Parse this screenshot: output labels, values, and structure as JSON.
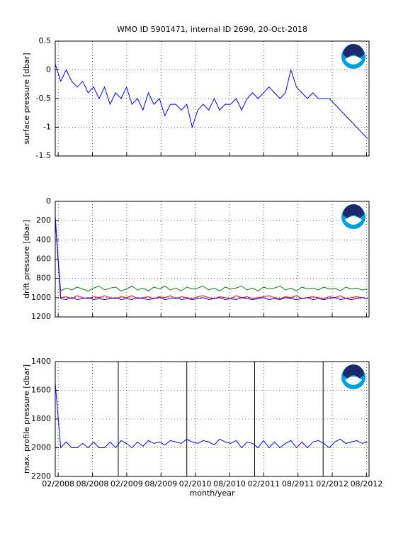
{
  "chart_data": [
    {
      "type": "line",
      "title": "WMO ID 5901471, internal ID 2690, 20-Oct-2018",
      "ylabel": "surface pressure [dbar]",
      "x": [
        2008.04,
        2008.12,
        2008.2,
        2008.28,
        2008.36,
        2008.44,
        2008.52,
        2008.6,
        2008.68,
        2008.76,
        2008.84,
        2008.92,
        2009.0,
        2009.08,
        2009.16,
        2009.24,
        2009.32,
        2009.4,
        2009.48,
        2009.56,
        2009.64,
        2009.72,
        2009.8,
        2009.88,
        2009.96,
        2010.04,
        2010.12,
        2010.2,
        2010.28,
        2010.36,
        2010.44,
        2010.52,
        2010.6,
        2010.68,
        2010.76,
        2010.84,
        2010.92,
        2011.0,
        2011.08,
        2011.16,
        2011.24,
        2011.32,
        2011.4,
        2011.48,
        2011.56,
        2011.64,
        2011.72,
        2011.8,
        2011.88,
        2011.96,
        2012.04,
        2012.12,
        2012.2,
        2012.28,
        2012.36,
        2012.44,
        2012.52,
        2012.6
      ],
      "series": [
        {
          "color": "#0000ff",
          "values": [
            0.1,
            -0.2,
            0.0,
            -0.2,
            -0.3,
            -0.2,
            -0.4,
            -0.3,
            -0.5,
            -0.3,
            -0.6,
            -0.4,
            -0.5,
            -0.3,
            -0.6,
            -0.5,
            -0.7,
            -0.4,
            -0.6,
            -0.5,
            -0.8,
            -0.6,
            -0.6,
            -0.7,
            -0.6,
            -1.0,
            -0.7,
            -0.6,
            -0.7,
            -0.5,
            -0.7,
            -0.6,
            -0.6,
            -0.5,
            -0.7,
            -0.5,
            -0.4,
            -0.5,
            -0.4,
            -0.3,
            -0.4,
            -0.5,
            -0.4,
            0.0,
            -0.3,
            -0.4,
            -0.5,
            -0.4,
            -0.5,
            -0.5,
            -0.5,
            -0.6,
            -0.7,
            -0.8,
            -0.9,
            -1.0,
            -1.1,
            -1.2
          ]
        }
      ],
      "xlim": [
        2008.04,
        2012.62
      ],
      "xticks": [
        2008.083,
        2008.583,
        2009.083,
        2009.583,
        2010.083,
        2010.583,
        2011.083,
        2011.583,
        2012.083,
        2012.583
      ],
      "ylim": [
        -1.5,
        0.5
      ],
      "yticks": [
        0.5,
        0,
        -0.5,
        -1,
        -1.5
      ],
      "y_reversed": false,
      "grid": true
    },
    {
      "type": "line",
      "ylabel": "drift pressure [dbar]",
      "x": [
        2008.04,
        2008.12,
        2008.2,
        2008.28,
        2008.36,
        2008.44,
        2008.52,
        2008.6,
        2008.68,
        2008.76,
        2008.84,
        2008.92,
        2009.0,
        2009.08,
        2009.16,
        2009.24,
        2009.32,
        2009.4,
        2009.48,
        2009.56,
        2009.64,
        2009.72,
        2009.8,
        2009.88,
        2009.96,
        2010.04,
        2010.12,
        2010.2,
        2010.28,
        2010.36,
        2010.44,
        2010.52,
        2010.6,
        2010.68,
        2010.76,
        2010.84,
        2010.92,
        2011.0,
        2011.08,
        2011.16,
        2011.24,
        2011.32,
        2011.4,
        2011.48,
        2011.56,
        2011.64,
        2011.72,
        2011.8,
        2011.88,
        2011.96,
        2012.04,
        2012.12,
        2012.2,
        2012.28,
        2012.36,
        2012.44,
        2012.52,
        2012.6
      ],
      "series": [
        {
          "color": "#008000",
          "values": [
            200,
            930,
            900,
            920,
            890,
            910,
            930,
            900,
            880,
            920,
            900,
            890,
            930,
            910,
            880,
            920,
            900,
            930,
            890,
            910,
            880,
            920,
            900,
            930,
            890,
            910,
            900,
            880,
            920,
            900,
            930,
            890,
            910,
            900,
            880,
            920,
            900,
            930,
            890,
            910,
            900,
            880,
            920,
            900,
            930,
            890,
            910,
            900,
            920,
            890,
            910,
            900,
            930,
            890,
            910,
            900,
            920,
            910
          ]
        },
        {
          "color": "#ff0000",
          "values": [
            150,
            1000,
            990,
            1010,
            980,
            1000,
            1010,
            990,
            1000,
            980,
            1000,
            1010,
            990,
            1000,
            980,
            1010,
            1000,
            990,
            1010,
            990,
            1000,
            980,
            1010,
            990,
            1000,
            1010,
            990,
            980,
            1000,
            1010,
            990,
            1000,
            1010,
            980,
            1000,
            990,
            1010,
            1000,
            990,
            980,
            1000,
            1010,
            990,
            1000,
            980,
            1010,
            1000,
            990,
            1000,
            1010,
            990,
            1000,
            980,
            1010,
            1000,
            990,
            1000,
            1010
          ]
        },
        {
          "color": "#0000ff",
          "values": [
            170,
            1010,
            1020,
            1000,
            1020,
            1010,
            1000,
            1020,
            1010,
            1020,
            1010,
            1000,
            1020,
            1010,
            1020,
            1000,
            1010,
            1020,
            1010,
            1000,
            1020,
            1010,
            1000,
            1020,
            1010,
            1020,
            1010,
            1000,
            1020,
            1010,
            1000,
            1020,
            1010,
            1020,
            1000,
            1010,
            1020,
            1010,
            1000,
            1020,
            1010,
            1020,
            1000,
            1010,
            1020,
            1010,
            1000,
            1020,
            1010,
            1020,
            1010,
            1000,
            1020,
            1010,
            1020,
            1010,
            1000,
            1010
          ]
        }
      ],
      "xlim": [
        2008.04,
        2012.62
      ],
      "xticks": [
        2008.083,
        2008.583,
        2009.083,
        2009.583,
        2010.083,
        2010.583,
        2011.083,
        2011.583,
        2012.083,
        2012.583
      ],
      "ylim": [
        0,
        1200
      ],
      "yticks": [
        0,
        200,
        400,
        600,
        800,
        1000,
        1200
      ],
      "y_reversed": true,
      "grid": true
    },
    {
      "type": "line",
      "ylabel": "max. profile pressure [dbar]",
      "xlabel": "month/year",
      "x": [
        2008.04,
        2008.12,
        2008.2,
        2008.28,
        2008.36,
        2008.44,
        2008.52,
        2008.6,
        2008.68,
        2008.76,
        2008.84,
        2008.92,
        2009.0,
        2009.08,
        2009.16,
        2009.24,
        2009.32,
        2009.4,
        2009.48,
        2009.56,
        2009.64,
        2009.72,
        2009.8,
        2009.88,
        2009.96,
        2010.04,
        2010.12,
        2010.2,
        2010.28,
        2010.36,
        2010.44,
        2010.52,
        2010.6,
        2010.68,
        2010.76,
        2010.84,
        2010.92,
        2011.0,
        2011.08,
        2011.16,
        2011.24,
        2011.32,
        2011.4,
        2011.48,
        2011.56,
        2011.64,
        2011.72,
        2011.8,
        2011.88,
        2011.96,
        2012.04,
        2012.12,
        2012.2,
        2012.28,
        2012.36,
        2012.44,
        2012.52,
        2012.6
      ],
      "series": [
        {
          "color": "#0000ff",
          "values": [
            1550,
            2000,
            1960,
            2000,
            2000,
            1970,
            2000,
            1960,
            2000,
            2000,
            1960,
            2000,
            1950,
            1970,
            2000,
            1960,
            1990,
            1950,
            1970,
            1960,
            1980,
            1950,
            1960,
            1970,
            1940,
            1960,
            1970,
            1950,
            1960,
            1980,
            1940,
            1960,
            1970,
            1950,
            2000,
            1960,
            1970,
            2000,
            1950,
            2000,
            1960,
            2000,
            1970,
            1950,
            2000,
            1960,
            2000,
            1960,
            1950,
            1970,
            2000,
            1960,
            1940,
            1970,
            1960,
            1950,
            1970,
            1960
          ]
        }
      ],
      "vlines": [
        2008.96,
        2009.96,
        2010.95,
        2011.95
      ],
      "xlim": [
        2008.04,
        2012.62
      ],
      "xticks": [
        {
          "value": 2008.083,
          "label": "02/2008"
        },
        {
          "value": 2008.583,
          "label": "08/2008"
        },
        {
          "value": 2009.083,
          "label": "02/2009"
        },
        {
          "value": 2009.583,
          "label": "08/2009"
        },
        {
          "value": 2010.083,
          "label": "02/2010"
        },
        {
          "value": 2010.583,
          "label": "08/2010"
        },
        {
          "value": 2011.083,
          "label": "02/2011"
        },
        {
          "value": 2011.583,
          "label": "08/2011"
        },
        {
          "value": 2012.083,
          "label": "02/2012"
        },
        {
          "value": 2012.583,
          "label": "08/2012"
        }
      ],
      "ylim": [
        1400,
        2200
      ],
      "yticks": [
        1400,
        1600,
        1800,
        2000,
        2200
      ],
      "y_reversed": true,
      "grid": true
    }
  ]
}
